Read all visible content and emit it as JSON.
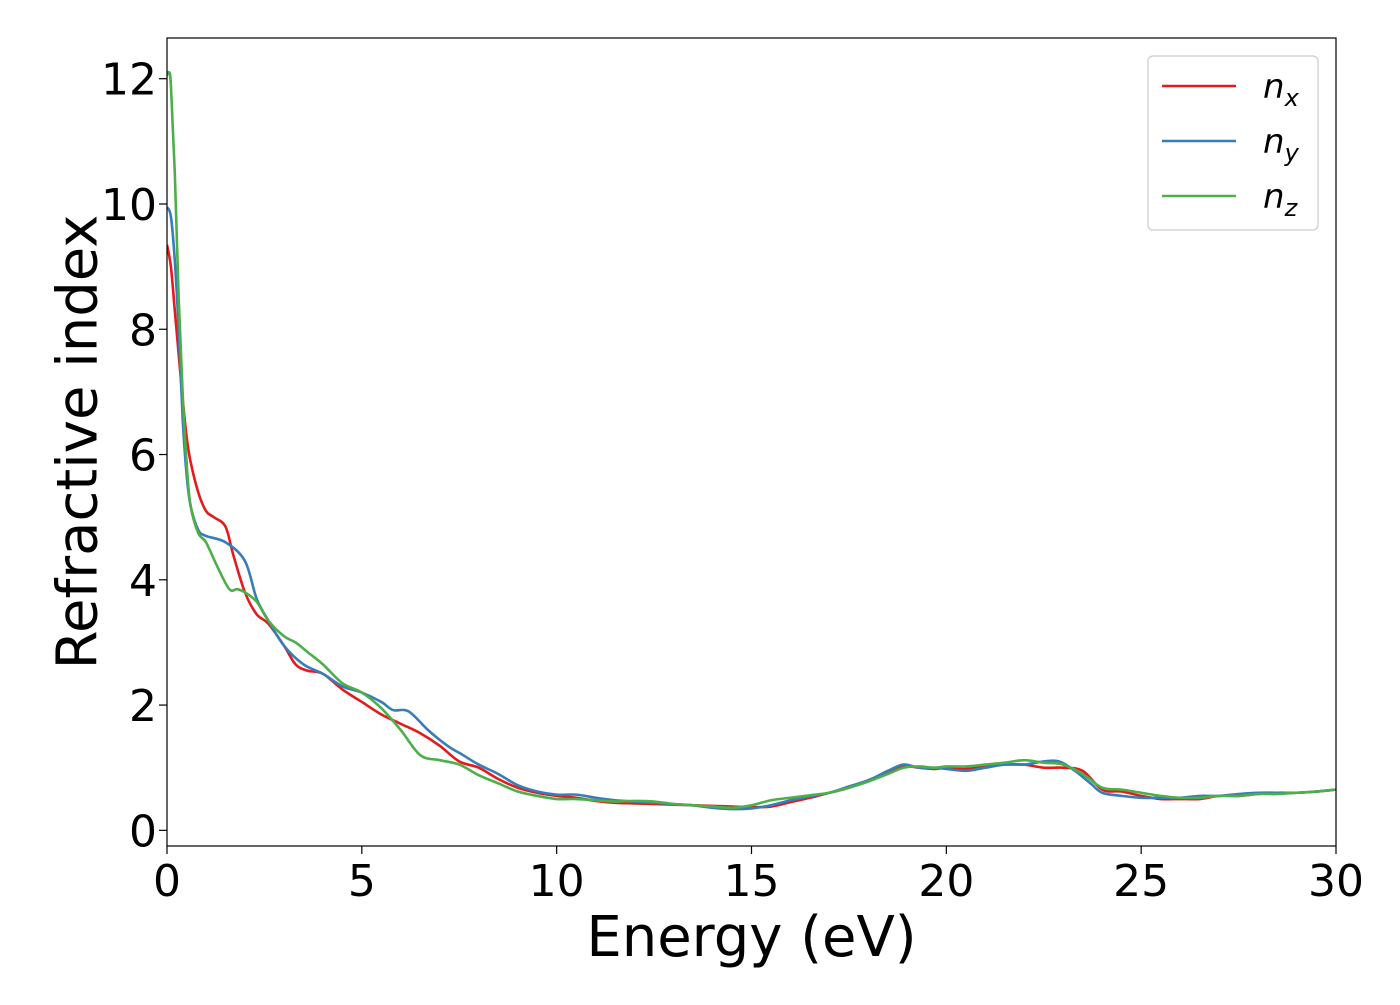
{
  "chart_data": {
    "type": "line",
    "xlabel": "Energy (eV)",
    "ylabel": "Refractive index",
    "xlim": [
      0,
      30
    ],
    "ylim": [
      -0.25,
      12.65
    ],
    "xticks": [
      0,
      5,
      10,
      15,
      20,
      25,
      30
    ],
    "yticks": [
      0,
      2,
      4,
      6,
      8,
      10,
      12
    ],
    "grid": false,
    "legend_position": "top-right",
    "series": [
      {
        "name": "n",
        "subscript": "x",
        "color": "#e41a1c",
        "x": [
          0,
          0.1,
          0.2,
          0.3,
          0.4,
          0.5,
          0.6,
          0.8,
          1.0,
          1.2,
          1.5,
          1.7,
          2.0,
          2.3,
          2.6,
          3.0,
          3.3,
          3.6,
          4.0,
          4.5,
          5.0,
          5.5,
          6.0,
          6.5,
          7.0,
          7.5,
          8.0,
          8.5,
          9.0,
          9.5,
          10.0,
          10.5,
          11.0,
          11.5,
          12.0,
          12.5,
          13.0,
          13.5,
          14.0,
          14.5,
          15.0,
          15.5,
          16.0,
          16.5,
          17.0,
          17.5,
          18.0,
          18.5,
          18.9,
          19.3,
          19.7,
          20.0,
          20.5,
          21.0,
          21.5,
          22.0,
          22.5,
          23.0,
          23.5,
          24.0,
          24.5,
          25.0,
          25.5,
          26.0,
          26.5,
          27.0,
          27.5,
          28.0,
          28.5,
          29.0,
          29.5,
          30.0
        ],
        "values": [
          9.35,
          9.0,
          8.3,
          7.6,
          6.9,
          6.3,
          5.9,
          5.4,
          5.1,
          5.0,
          4.85,
          4.4,
          3.8,
          3.45,
          3.3,
          2.95,
          2.65,
          2.55,
          2.5,
          2.25,
          2.05,
          1.85,
          1.7,
          1.55,
          1.35,
          1.1,
          1.0,
          0.82,
          0.68,
          0.6,
          0.55,
          0.52,
          0.47,
          0.44,
          0.43,
          0.42,
          0.41,
          0.4,
          0.39,
          0.38,
          0.37,
          0.38,
          0.45,
          0.52,
          0.6,
          0.68,
          0.8,
          0.92,
          1.02,
          1.0,
          0.98,
          1.0,
          0.98,
          1.02,
          1.05,
          1.05,
          1.0,
          1.0,
          0.95,
          0.65,
          0.62,
          0.55,
          0.5,
          0.5,
          0.5,
          0.55,
          0.55,
          0.58,
          0.6,
          0.6,
          0.62,
          0.65
        ]
      },
      {
        "name": "n",
        "subscript": "y",
        "color": "#377eb8",
        "x": [
          0,
          0.1,
          0.2,
          0.3,
          0.4,
          0.5,
          0.6,
          0.8,
          1.0,
          1.5,
          2.0,
          2.3,
          2.6,
          3.0,
          3.5,
          4.0,
          4.5,
          5.0,
          5.5,
          5.8,
          6.2,
          6.7,
          7.2,
          7.6,
          8.0,
          8.5,
          9.0,
          9.5,
          10.0,
          10.5,
          11.0,
          11.5,
          12.0,
          12.5,
          13.0,
          13.5,
          14.0,
          14.5,
          15.0,
          15.5,
          16.0,
          16.5,
          17.0,
          17.5,
          18.0,
          18.5,
          18.9,
          19.3,
          19.7,
          20.0,
          20.5,
          21.0,
          21.5,
          22.0,
          22.5,
          22.9,
          23.3,
          23.7,
          24.0,
          24.5,
          25.0,
          25.5,
          26.0,
          26.5,
          27.0,
          27.5,
          28.0,
          28.5,
          29.0,
          29.5,
          30.0
        ],
        "values": [
          9.95,
          9.8,
          9.1,
          8.0,
          6.6,
          5.7,
          5.2,
          4.8,
          4.7,
          4.6,
          4.3,
          3.7,
          3.35,
          2.95,
          2.65,
          2.5,
          2.3,
          2.2,
          2.05,
          1.92,
          1.9,
          1.6,
          1.35,
          1.2,
          1.05,
          0.9,
          0.72,
          0.62,
          0.57,
          0.57,
          0.52,
          0.48,
          0.46,
          0.44,
          0.42,
          0.4,
          0.36,
          0.34,
          0.35,
          0.4,
          0.48,
          0.54,
          0.6,
          0.7,
          0.8,
          0.95,
          1.05,
          1.0,
          1.0,
          0.98,
          0.95,
          1.0,
          1.05,
          1.05,
          1.1,
          1.1,
          0.95,
          0.75,
          0.6,
          0.55,
          0.52,
          0.52,
          0.52,
          0.55,
          0.55,
          0.58,
          0.6,
          0.6,
          0.6,
          0.62,
          0.65
        ]
      },
      {
        "name": "n",
        "subscript": "z",
        "color": "#4daf4a",
        "x": [
          0,
          0.05,
          0.1,
          0.2,
          0.3,
          0.4,
          0.5,
          0.6,
          0.8,
          1.0,
          1.3,
          1.6,
          1.8,
          2.0,
          2.3,
          2.6,
          3.0,
          3.3,
          3.6,
          4.0,
          4.5,
          5.0,
          5.5,
          6.0,
          6.5,
          7.0,
          7.5,
          8.0,
          8.5,
          9.0,
          9.5,
          10.0,
          10.5,
          11.0,
          11.5,
          12.0,
          12.5,
          13.0,
          13.5,
          14.0,
          14.5,
          15.0,
          15.5,
          16.0,
          16.5,
          17.0,
          17.5,
          18.0,
          18.5,
          18.9,
          19.3,
          19.7,
          20.0,
          20.5,
          21.0,
          21.5,
          22.0,
          22.5,
          23.0,
          23.5,
          24.0,
          24.5,
          25.0,
          25.5,
          26.0,
          26.5,
          27.0,
          27.5,
          28.0,
          28.5,
          29.0,
          29.5,
          30.0
        ],
        "values": [
          12.05,
          12.1,
          11.9,
          10.5,
          8.5,
          7.0,
          5.9,
          5.2,
          4.75,
          4.6,
          4.2,
          3.85,
          3.85,
          3.8,
          3.65,
          3.35,
          3.1,
          3.0,
          2.85,
          2.65,
          2.35,
          2.2,
          1.95,
          1.6,
          1.2,
          1.12,
          1.05,
          0.88,
          0.75,
          0.62,
          0.55,
          0.5,
          0.5,
          0.48,
          0.46,
          0.47,
          0.46,
          0.42,
          0.4,
          0.38,
          0.36,
          0.4,
          0.48,
          0.52,
          0.56,
          0.6,
          0.68,
          0.78,
          0.9,
          1.0,
          1.02,
          1.0,
          1.02,
          1.02,
          1.05,
          1.08,
          1.12,
          1.08,
          1.05,
          0.9,
          0.68,
          0.65,
          0.6,
          0.55,
          0.52,
          0.52,
          0.55,
          0.55,
          0.58,
          0.58,
          0.6,
          0.62,
          0.65
        ]
      }
    ]
  }
}
